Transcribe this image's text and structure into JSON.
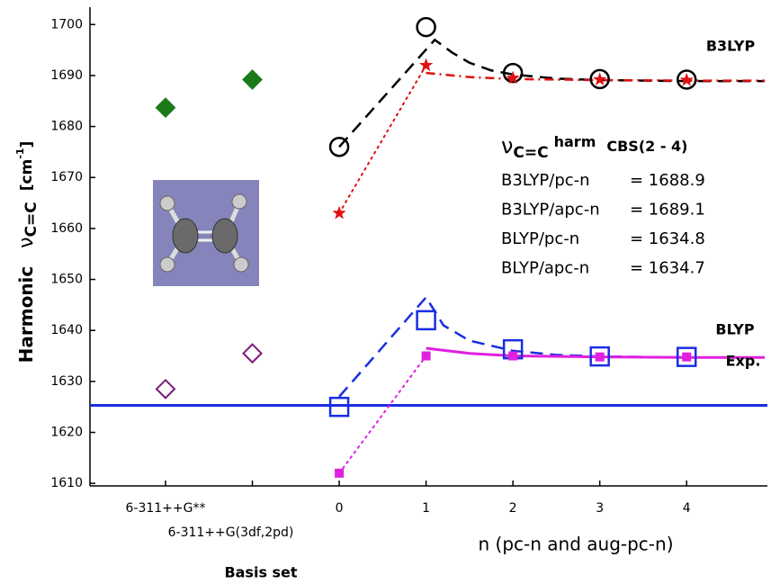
{
  "chart_data": {
    "type": "scatter",
    "xlim": [
      -2.87,
      4.93
    ],
    "ylim": [
      1609.5,
      1703.4
    ],
    "xticks": [
      {
        "value": -2,
        "label": "6-311++G**"
      },
      {
        "value": -1,
        "label": "6-311++G(3df,2pd)"
      },
      0,
      1,
      2,
      3,
      4
    ],
    "yticks": [
      1610,
      1620,
      1630,
      1640,
      1650,
      1660,
      1670,
      1680,
      1690,
      1700
    ],
    "y_label": {
      "main": "Harmonic",
      "symbol": "ν",
      "subscript": "C=C",
      "unit_open": "[cm",
      "unit_sup": "-1",
      "unit_close": "]"
    },
    "x_label": "n (pc-n and aug-pc-n)",
    "x_label_2": "Basis set",
    "annotations": [
      "B3LYP",
      "BLYP",
      "Exp."
    ],
    "reference_line": {
      "value": 1625.3,
      "color": "#1a2ee0"
    },
    "info_box": {
      "symbol": "ν",
      "subscript": "C=C",
      "superscript": "harm",
      "title": "CBS(2 - 4)",
      "rows": [
        {
          "label": "B3LYP/pc-n",
          "value": "= 1688.9"
        },
        {
          "label": "B3LYP/apc-n",
          "value": "= 1689.1"
        },
        {
          "label": "BLYP/pc-n",
          "value": "= 1634.8"
        },
        {
          "label": "BLYP/apc-n",
          "value": "= 1634.7"
        }
      ]
    },
    "series": [
      {
        "kind": "line",
        "dash": "dashed",
        "color": "#000000",
        "x": [
          0,
          1.1,
          1.3,
          1.5,
          1.75,
          2,
          2.5,
          3,
          4,
          4.9
        ],
        "values": [
          1676,
          1697,
          1694.5,
          1692.5,
          1691,
          1690.2,
          1689.4,
          1689.1,
          1688.9,
          1688.9
        ]
      },
      {
        "kind": "line",
        "dash": "dotted",
        "color": "#e01010",
        "x": [
          0,
          1
        ],
        "values": [
          1663,
          1692
        ]
      },
      {
        "kind": "line",
        "dash": "dashdot",
        "color": "#e01010",
        "x": [
          1,
          1.5,
          2,
          3,
          4,
          4.9
        ],
        "values": [
          1690.5,
          1689.7,
          1689.3,
          1689.1,
          1689,
          1689
        ]
      },
      {
        "kind": "line",
        "dash": "dashed",
        "color": "#1a2ee0",
        "x": [
          0,
          1,
          1.2,
          1.5,
          2,
          2.5,
          3,
          4,
          4.9
        ],
        "values": [
          1627,
          1646.5,
          1641,
          1638,
          1636,
          1635.2,
          1634.9,
          1634.7,
          1634.7
        ]
      },
      {
        "kind": "line",
        "dash": "dotted",
        "color": "#e020e0",
        "x": [
          0,
          1
        ],
        "values": [
          1612,
          1635
        ]
      },
      {
        "kind": "line",
        "dash": "solid",
        "color": "#e020e0",
        "x": [
          1,
          1.5,
          2,
          3,
          4,
          4.9
        ],
        "values": [
          1636.5,
          1635.5,
          1635,
          1634.8,
          1634.7,
          1634.7
        ]
      },
      {
        "kind": "marker",
        "marker": "diamond",
        "filled": true,
        "color": "#1a7a1a",
        "x": [
          -2,
          -1
        ],
        "values": [
          1683.7,
          1689.2
        ]
      },
      {
        "kind": "marker",
        "marker": "diamond",
        "filled": false,
        "color": "#7a1a7a",
        "x": [
          -2,
          -1
        ],
        "values": [
          1628.5,
          1635.5
        ]
      },
      {
        "kind": "marker",
        "marker": "circle",
        "filled": false,
        "color": "#000000",
        "x": [
          0,
          1,
          2,
          3,
          4
        ],
        "values": [
          1676,
          1699.5,
          1690.5,
          1689.3,
          1689.2
        ]
      },
      {
        "kind": "marker",
        "marker": "star",
        "filled": true,
        "color": "#e01010",
        "x": [
          0,
          1,
          2,
          3,
          4
        ],
        "values": [
          1663,
          1692,
          1689.5,
          1689.2,
          1689.1
        ]
      },
      {
        "kind": "marker",
        "marker": "square",
        "filled": false,
        "color": "#1a2ee0",
        "x": [
          0,
          1,
          2,
          3,
          4
        ],
        "values": [
          1625,
          1642,
          1636.3,
          1634.9,
          1634.8
        ]
      },
      {
        "kind": "marker",
        "marker": "smallsquare",
        "filled": true,
        "color": "#e020e0",
        "x": [
          0,
          1,
          2,
          3,
          4
        ],
        "values": [
          1612,
          1635,
          1635,
          1634.8,
          1634.8
        ]
      }
    ]
  }
}
